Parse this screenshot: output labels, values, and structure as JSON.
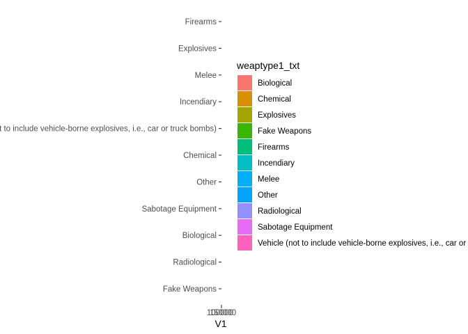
{
  "chart_data": {
    "type": "bar",
    "orientation": "horizontal",
    "categories": [
      "Firearms",
      "Explosives",
      "Melee",
      "Incendiary",
      "Vehicle (not to include vehicle-borne explosives, i.e., car or truck bombs)",
      "Chemical",
      "Other",
      "Sabotage Equipment",
      "Biological",
      "Radiological",
      "Fake Weapons"
    ],
    "values": [
      0,
      0,
      0,
      0,
      0,
      0,
      0,
      0,
      0,
      0,
      0
    ],
    "xlabel": "V1",
    "x_tick_labels": [
      "100000",
      "150000"
    ],
    "grid": false,
    "legend": {
      "title": "weaptype1_txt",
      "position": "right",
      "entries": [
        {
          "label": "Biological",
          "color": "#F8766D"
        },
        {
          "label": "Chemical",
          "color": "#D89000"
        },
        {
          "label": "Explosives",
          "color": "#A3A500"
        },
        {
          "label": "Fake Weapons",
          "color": "#39B600"
        },
        {
          "label": "Firearms",
          "color": "#00BF7D"
        },
        {
          "label": "Incendiary",
          "color": "#00BFC4"
        },
        {
          "label": "Melee",
          "color": "#00B0F6"
        },
        {
          "label": "Other",
          "color": "#00A5FF"
        },
        {
          "label": "Radiological",
          "color": "#9590FF"
        },
        {
          "label": "Sabotage Equipment",
          "color": "#E76BF3"
        },
        {
          "label": "Vehicle (not to include vehicle-borne explosives, i.e., car or truck bombs)",
          "color": "#FF62BC"
        }
      ]
    }
  }
}
